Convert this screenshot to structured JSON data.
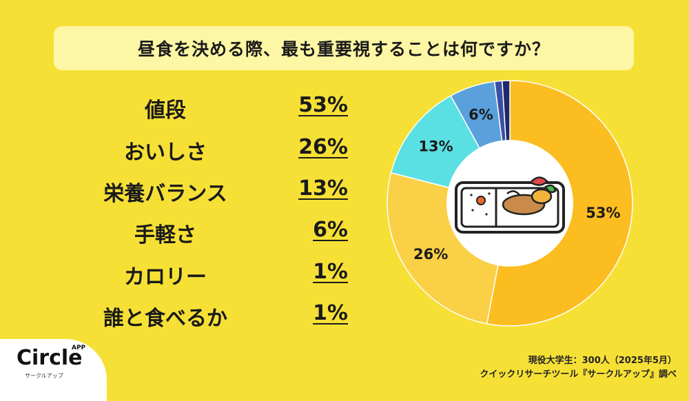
{
  "title": "昼食を決める際、最も重要視することは何ですか？",
  "chart_data": {
    "type": "pie",
    "categories": [
      "値段",
      "おいしさ",
      "栄養バランス",
      "手軽さ",
      "カロリー",
      "誰と食べるか"
    ],
    "values": [
      53,
      26,
      13,
      6,
      1,
      1
    ],
    "value_labels": [
      "53%",
      "26%",
      "13%",
      "6%",
      "1%",
      "1%"
    ],
    "slice_labels": [
      "53%",
      "26%",
      "13%",
      "6%",
      "",
      ""
    ],
    "colors": [
      "#fbbd1f",
      "#fad046",
      "#5ae0e3",
      "#5aa0dc",
      "#3d4fa3",
      "#1e2a6b"
    ],
    "donut": true
  },
  "source": {
    "line1": "現役大学生：300人（2025年5月）",
    "line2": "クイックリサーチツール『サークルアップ』調べ"
  },
  "logo": {
    "name": "Circle",
    "badge": "APP",
    "sub": "サークルアップ"
  }
}
